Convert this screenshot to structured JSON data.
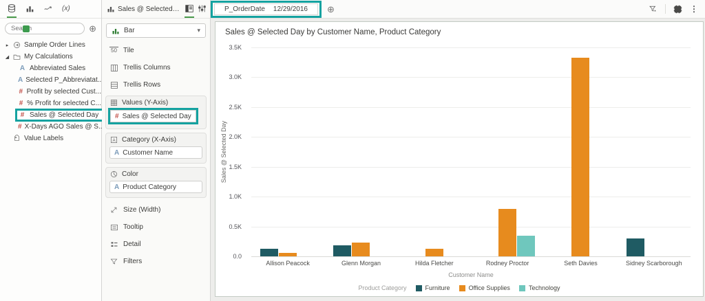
{
  "app": {
    "accent_green": "#4a9b4b",
    "annotation_teal": "#14a2a0"
  },
  "sidebar": {
    "search_placeholder": "Search",
    "tree": [
      {
        "label": "Sample Order Lines"
      },
      {
        "label": "My Calculations"
      },
      {
        "label": "Abbreviated Sales"
      },
      {
        "label": "Selected P_Abbreviatat..."
      },
      {
        "label": "Profit by selected Cust..."
      },
      {
        "label": "% Profit for selected C..."
      },
      {
        "label": "Sales @ Selected Day"
      },
      {
        "label": "X-Days AGO Sales @ S..."
      },
      {
        "label": "Value Labels"
      }
    ]
  },
  "viz_panel": {
    "tab_label": "Sales @ Selected Da...",
    "chart_type_selector": "Bar",
    "option_tile": "Tile",
    "option_trellis_columns": "Trellis Columns",
    "option_trellis_rows": "Trellis Rows",
    "section_values_title": "Values (Y-Axis)",
    "section_values_pill": "Sales @ Selected Day",
    "section_category_title": "Category (X-Axis)",
    "section_category_pill": "Customer Name",
    "section_color_title": "Color",
    "section_color_pill": "Product Category",
    "option_size": "Size (Width)",
    "option_tooltip": "Tooltip",
    "option_detail": "Detail",
    "option_filters": "Filters"
  },
  "filter_bar": {
    "filter_name": "P_OrderDate",
    "filter_value": "12/29/2016"
  },
  "chart_data": {
    "type": "bar",
    "title": "Sales @ Selected Day by Customer Name, Product Category",
    "xlabel": "Customer Name",
    "ylabel": "Sales @ Selected Day",
    "ylim": [
      0,
      3500
    ],
    "ytick_labels": [
      "3.5K",
      "3.0K",
      "2.5K",
      "2.0K",
      "1.5K",
      "1.0K",
      "0.5K",
      "0.0"
    ],
    "grid": true,
    "legend_position": "bottom",
    "legend_title": "Product Category",
    "categories": [
      "Allison Peacock",
      "Glenn Morgan",
      "Hilda Fletcher",
      "Rodney Proctor",
      "Seth Davies",
      "Sidney Scarborough"
    ],
    "series": [
      {
        "name": "Furniture",
        "color": "#1f5b63",
        "values": [
          130,
          180,
          null,
          null,
          null,
          300
        ]
      },
      {
        "name": "Office Supplies",
        "color": "#e78b1e",
        "values": [
          60,
          230,
          130,
          800,
          3330,
          null
        ]
      },
      {
        "name": "Technology",
        "color": "#6fc7bd",
        "values": [
          null,
          null,
          null,
          340,
          null,
          null
        ]
      }
    ]
  },
  "icons": {
    "collapsed_arrow": "▸",
    "expanded_arrow": "◢",
    "plus_circle": "⊕",
    "caret_down": "▾",
    "kebab": "⋮",
    "measure_hash": "#",
    "attribute_a": "A",
    "tile_50": "50",
    "fx": "(x)"
  }
}
